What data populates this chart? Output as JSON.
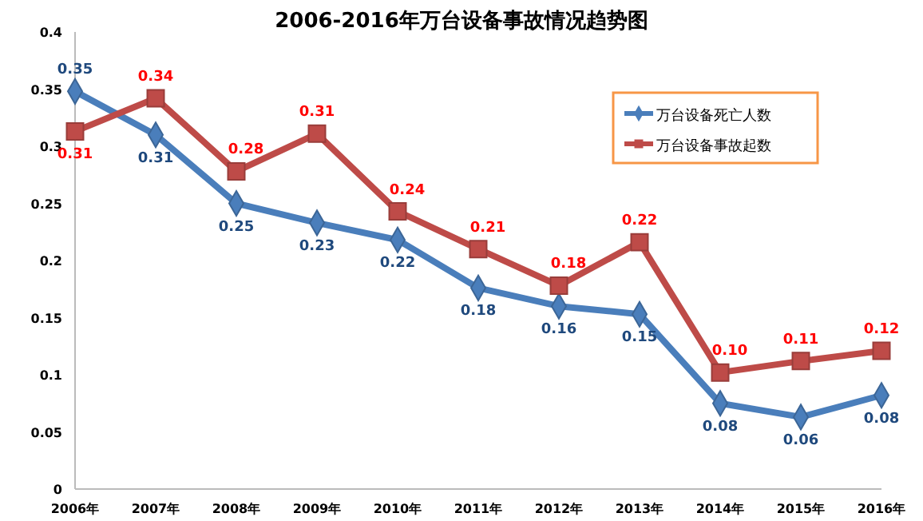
{
  "chart_data": {
    "type": "line",
    "title": "2006-2016年万台设备事故情况趋势图",
    "categories": [
      "2006年",
      "2007年",
      "2008年",
      "2009年",
      "2010年",
      "2011年",
      "2012年",
      "2013年",
      "2014年",
      "2015年",
      "2016年"
    ],
    "series": [
      {
        "name": "万台设备死亡人数",
        "color": "#4a7ebb",
        "marker": "diamond",
        "values": [
          0.348,
          0.31,
          0.25,
          0.233,
          0.218,
          0.176,
          0.16,
          0.153,
          0.075,
          0.063,
          0.082
        ],
        "value_labels": [
          "0.35",
          "0.31",
          "0.25",
          "0.23",
          "0.22",
          "0.18",
          "0.16",
          "0.15",
          "0.08",
          "0.06",
          "0.08"
        ]
      },
      {
        "name": "万台设备事故起数",
        "color": "#be4b48",
        "marker": "square",
        "values": [
          0.313,
          0.342,
          0.278,
          0.311,
          0.243,
          0.21,
          0.178,
          0.216,
          0.102,
          0.112,
          0.121
        ],
        "value_labels": [
          "0.31",
          "0.34",
          "0.28",
          "0.31",
          "0.24",
          "0.21",
          "0.18",
          "0.22",
          "0.10",
          "0.11",
          "0.12"
        ]
      }
    ],
    "ylim": [
      0,
      0.4
    ],
    "yticks": [
      0,
      0.05,
      0.1,
      0.15,
      0.2,
      0.25,
      0.3,
      0.35,
      0.4
    ],
    "grid": false,
    "legend": "top right"
  }
}
